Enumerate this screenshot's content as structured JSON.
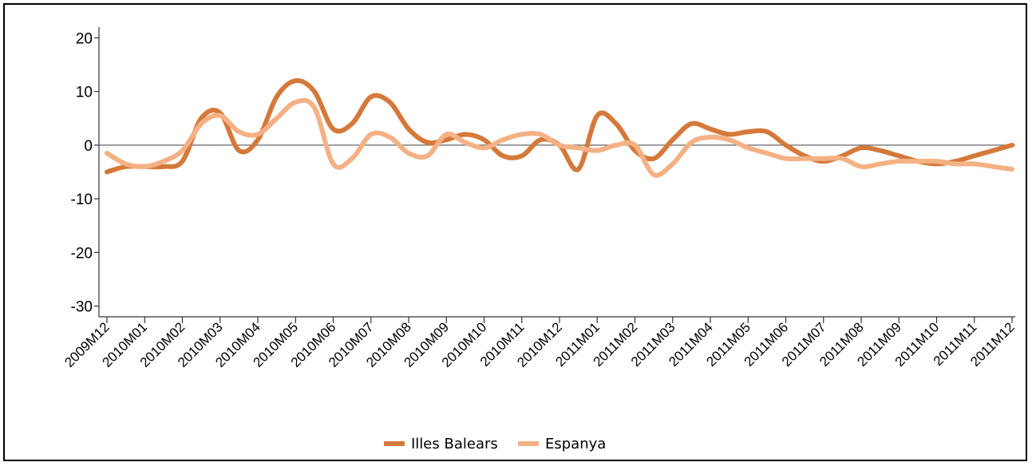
{
  "chart_data": {
    "type": "line",
    "title": "",
    "xlabel": "",
    "ylabel": "",
    "ylim": [
      -32,
      22
    ],
    "y_ticks": [
      20,
      10,
      0,
      -10,
      -20,
      -30
    ],
    "y_tick_labels": [
      "20",
      "10",
      "0",
      "-10",
      "-20",
      "-30"
    ],
    "categories": [
      "2009M12",
      "2010M01",
      "2010M02",
      "2010M03",
      "2010M04",
      "2010M05",
      "2010M06",
      "2010M07",
      "2010M08",
      "2010M09",
      "2010M10",
      "2010M11",
      "2010M12",
      "2011M01",
      "2011M02",
      "2011M03",
      "2011M04",
      "2011M05",
      "2011M06",
      "2011M07",
      "2011M08",
      "2011M09",
      "2011M10",
      "2011M11",
      "2011M12"
    ],
    "legend_position": "bottom-center",
    "grid": false,
    "zero_line": true,
    "series": [
      {
        "name": "Illes Balears",
        "color": "#d5793a",
        "x": [
          0,
          0.5,
          1,
          1.5,
          2,
          2.5,
          3,
          3.5,
          4,
          4.5,
          5,
          5.5,
          6,
          6.5,
          7,
          7.5,
          8,
          8.5,
          9,
          9.5,
          10,
          10.5,
          11,
          11.5,
          12,
          12.5,
          13,
          13.5,
          14,
          14.5,
          15,
          15.5,
          16,
          16.5,
          17,
          17.5,
          18,
          18.5,
          19,
          19.5,
          20,
          20.5,
          21,
          21.5,
          22,
          22.5,
          23,
          23.5,
          24
        ],
        "values": [
          -5,
          -4,
          -4,
          -4,
          -3,
          5,
          6,
          -1,
          1,
          9,
          12,
          10,
          3,
          4,
          9,
          8,
          3,
          0.5,
          1,
          2,
          1,
          -2,
          -2,
          1,
          0,
          -4.5,
          5.5,
          4,
          -1,
          -2.5,
          1,
          4,
          3,
          2,
          2.5,
          2.5,
          0,
          -2,
          -3,
          -2,
          -0.5,
          -1,
          -2,
          -3,
          -3.5,
          -3,
          -2,
          -1,
          0
        ]
      },
      {
        "name": "Espanya",
        "color": "#f4b184",
        "x": [
          0,
          0.5,
          1,
          1.5,
          2,
          2.5,
          3,
          3.5,
          4,
          4.5,
          5,
          5.5,
          6,
          6.5,
          7,
          7.5,
          8,
          8.5,
          9,
          9.5,
          10,
          10.5,
          11,
          11.5,
          12,
          12.5,
          13,
          13.5,
          14,
          14.5,
          15,
          15.5,
          16,
          16.5,
          17,
          17.5,
          18,
          18.5,
          19,
          19.5,
          20,
          20.5,
          21,
          21.5,
          22,
          22.5,
          23,
          23.5,
          24
        ],
        "values": [
          -1.5,
          -3.5,
          -4,
          -3,
          -1,
          4,
          5.5,
          2.5,
          2,
          5,
          8,
          7,
          -3.5,
          -2.5,
          2,
          1.5,
          -1.5,
          -2,
          2,
          0.5,
          -0.5,
          1,
          2,
          2,
          0,
          -0.5,
          -1,
          0,
          0,
          -5.5,
          -3.5,
          0.5,
          1.5,
          1,
          -0.5,
          -1.5,
          -2.5,
          -2.5,
          -2.5,
          -2.5,
          -4,
          -3.5,
          -3,
          -3,
          -3,
          -3.5,
          -3.5,
          -4,
          -4.5
        ]
      }
    ]
  }
}
